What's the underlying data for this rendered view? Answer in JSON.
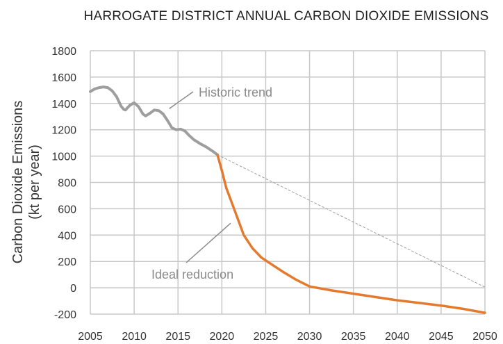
{
  "chart_data": {
    "type": "line",
    "title": "HARROGATE DISTRICT ANNUAL CARBON DIOXIDE EMISSIONS",
    "xlabel": "",
    "ylabel": [
      "Carbon Dioxide Emissions",
      "(kt per year)"
    ],
    "xlim": [
      2005,
      2050
    ],
    "ylim": [
      -200,
      1800
    ],
    "x_ticks": [
      2005,
      2010,
      2015,
      2020,
      2025,
      2030,
      2035,
      2040,
      2045,
      2050
    ],
    "y_ticks": [
      -200,
      0,
      200,
      400,
      600,
      800,
      1000,
      1200,
      1400,
      1600,
      1800
    ],
    "grid": true,
    "legend": "none",
    "series": [
      {
        "color": "#9e9e9e",
        "style": "solid",
        "points": [
          [
            2005,
            1490
          ],
          [
            2005.5,
            1510
          ],
          [
            2006,
            1520
          ],
          [
            2006.5,
            1525
          ],
          [
            2007,
            1520
          ],
          [
            2007.5,
            1495
          ],
          [
            2008,
            1450
          ],
          [
            2008.5,
            1380
          ],
          [
            2008.8,
            1355
          ],
          [
            2009,
            1350
          ],
          [
            2009.5,
            1385
          ],
          [
            2010,
            1405
          ],
          [
            2010.5,
            1375
          ],
          [
            2011,
            1320
          ],
          [
            2011.3,
            1305
          ],
          [
            2011.8,
            1325
          ],
          [
            2012.3,
            1350
          ],
          [
            2012.8,
            1345
          ],
          [
            2013.3,
            1320
          ],
          [
            2013.8,
            1270
          ],
          [
            2014.3,
            1215
          ],
          [
            2014.8,
            1200
          ],
          [
            2015.3,
            1205
          ],
          [
            2015.8,
            1190
          ],
          [
            2016.3,
            1155
          ],
          [
            2016.8,
            1125
          ],
          [
            2017.5,
            1095
          ],
          [
            2018.2,
            1070
          ],
          [
            2019,
            1035
          ],
          [
            2019.5,
            1010
          ]
        ]
      },
      {
        "color": "#e47a2e",
        "style": "solid",
        "points": [
          [
            2019.5,
            1010
          ],
          [
            2020,
            890
          ],
          [
            2020.5,
            760
          ],
          [
            2021.5,
            580
          ],
          [
            2022.5,
            400
          ],
          [
            2023.5,
            300
          ],
          [
            2024.5,
            230
          ],
          [
            2025.5,
            185
          ],
          [
            2027,
            120
          ],
          [
            2028.5,
            60
          ],
          [
            2030,
            10
          ],
          [
            2032.5,
            -20
          ],
          [
            2035,
            -45
          ],
          [
            2037.5,
            -70
          ],
          [
            2040,
            -95
          ],
          [
            2042.5,
            -115
          ],
          [
            2045,
            -135
          ],
          [
            2047.5,
            -160
          ],
          [
            2050,
            -190
          ]
        ]
      },
      {
        "color": "#9e9e9e",
        "style": "dashed",
        "points": [
          [
            2019.5,
            1010
          ],
          [
            2050,
            5
          ]
        ]
      }
    ],
    "annotations": [
      {
        "text": "Historic trend",
        "point_to": [
          2014,
          1360
        ]
      },
      {
        "text": "Ideal reduction",
        "point_to": [
          2021,
          490
        ]
      }
    ]
  }
}
